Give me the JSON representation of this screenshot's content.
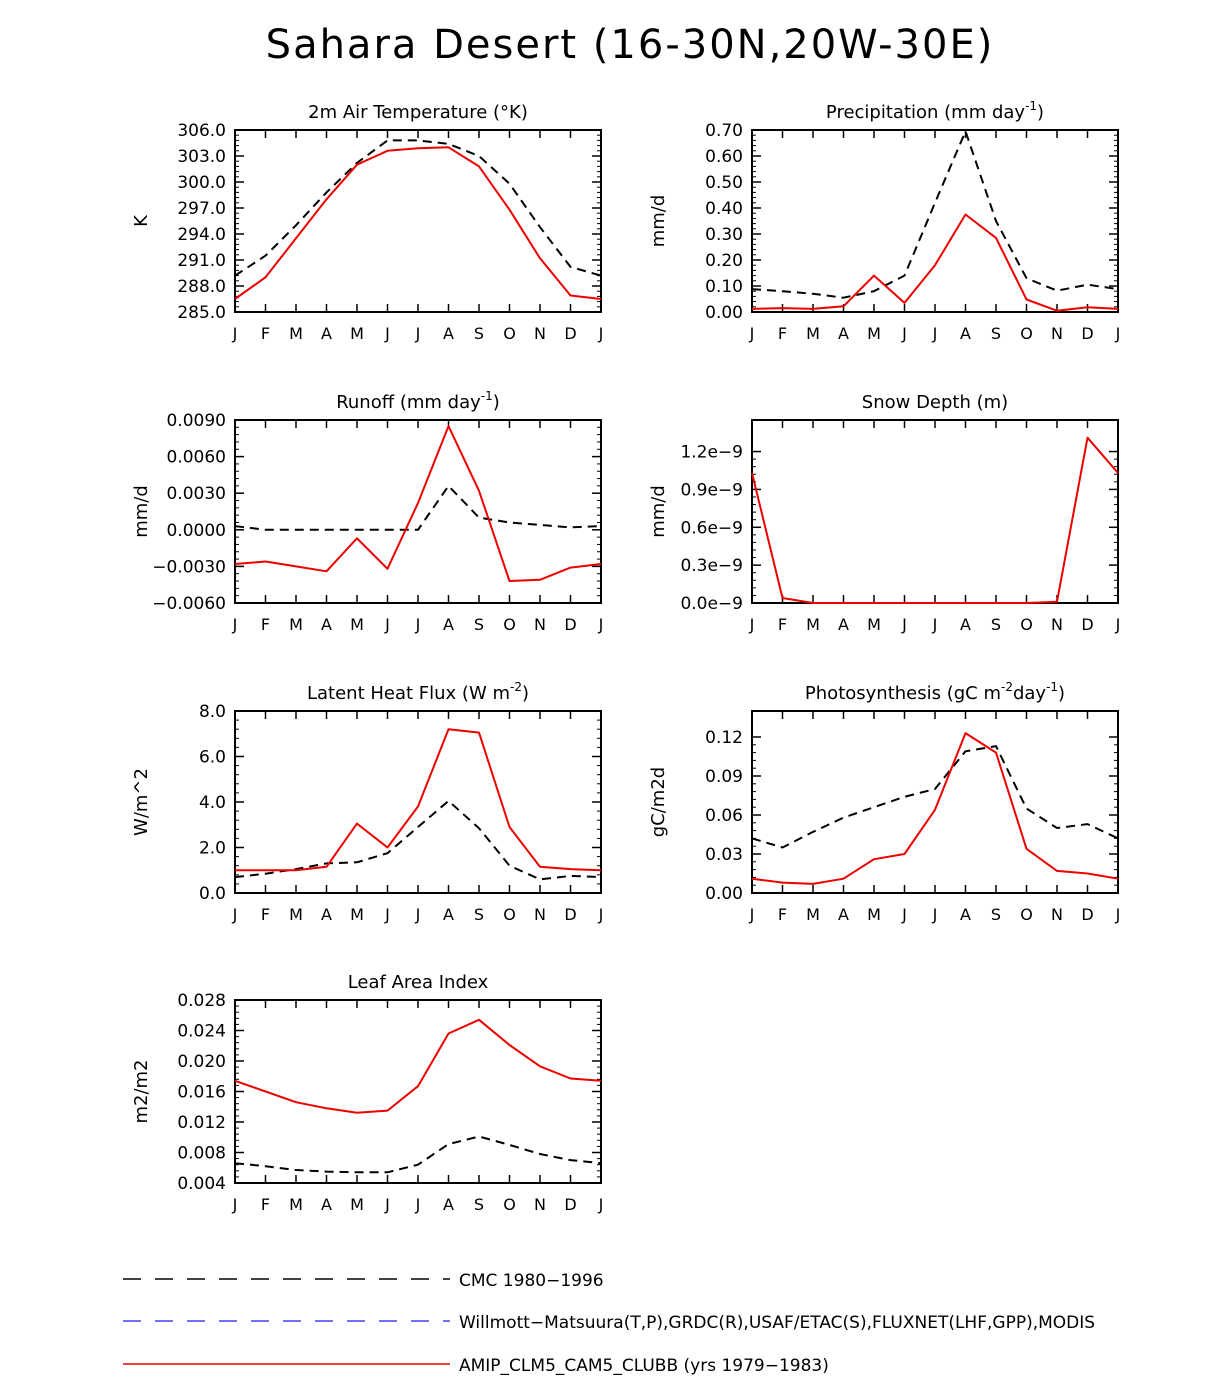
{
  "title": "Sahara Desert (16-30N,20W-30E)",
  "colors": {
    "obs": "#000000",
    "obs2": "#4040ff",
    "model": "#ee0000"
  },
  "months": [
    "J",
    "F",
    "M",
    "A",
    "M",
    "J",
    "J",
    "A",
    "S",
    "O",
    "N",
    "D",
    "J"
  ],
  "chart_data": [
    {
      "type": "line",
      "title": "2m Air Temperature (°K)",
      "ylabel": "K",
      "ylim": [
        285.0,
        306.0
      ],
      "yticks": [
        "285.0",
        "288.0",
        "291.0",
        "294.0",
        "297.0",
        "300.0",
        "303.0",
        "306.0"
      ],
      "ytick_values": [
        285,
        288,
        291,
        294,
        297,
        300,
        303,
        306
      ],
      "series": [
        {
          "name": "CMC 1980-1996",
          "style": "obs",
          "values": [
            289.2,
            291.5,
            295.0,
            298.8,
            302.2,
            304.8,
            304.8,
            304.4,
            303.0,
            299.8,
            294.8,
            290.2,
            289.2
          ]
        },
        {
          "name": "AMIP_CLM5_CAM5_CLUBB (yrs 1979-1983)",
          "style": "model",
          "values": [
            286.5,
            289.0,
            293.5,
            298.0,
            302.0,
            303.6,
            303.9,
            304.0,
            301.8,
            296.8,
            291.2,
            286.9,
            286.5
          ]
        }
      ]
    },
    {
      "type": "line",
      "title": "Precipitation (mm day",
      "title_sup": "-1",
      "title_end": ")",
      "ylabel": "mm/d",
      "ylim": [
        0.0,
        0.7
      ],
      "yticks": [
        "0.00",
        "0.10",
        "0.20",
        "0.30",
        "0.40",
        "0.50",
        "0.60",
        "0.70"
      ],
      "ytick_values": [
        0,
        0.1,
        0.2,
        0.3,
        0.4,
        0.5,
        0.6,
        0.7
      ],
      "series": [
        {
          "name": "CMC 1980-1996",
          "style": "obs",
          "values": [
            0.088,
            0.08,
            0.07,
            0.055,
            0.08,
            0.14,
            0.42,
            0.695,
            0.35,
            0.13,
            0.082,
            0.105,
            0.088
          ]
        },
        {
          "name": "AMIP_CLM5_CAM5_CLUBB (yrs 1979-1983)",
          "style": "model",
          "values": [
            0.012,
            0.015,
            0.012,
            0.022,
            0.14,
            0.035,
            0.18,
            0.375,
            0.285,
            0.048,
            0.005,
            0.018,
            0.012
          ]
        }
      ]
    },
    {
      "type": "line",
      "title": "Runoff (mm day",
      "title_sup": "-1",
      "title_end": ")",
      "ylabel": "mm/d",
      "ylim": [
        -0.006,
        0.009
      ],
      "yticks": [
        "−0.0060",
        "−0.0030",
        "0.0000",
        "0.0030",
        "0.0060",
        "0.0090"
      ],
      "ytick_values": [
        -0.006,
        -0.003,
        0,
        0.003,
        0.006,
        0.009
      ],
      "series": [
        {
          "name": "CMC 1980-1996",
          "style": "obs",
          "values": [
            0.0003,
            0.0,
            0.0,
            0.0,
            0.0,
            0.0,
            0.0,
            0.0036,
            0.001,
            0.0006,
            0.0004,
            0.0002,
            0.0003
          ]
        },
        {
          "name": "AMIP_CLM5_CAM5_CLUBB (yrs 1979-1983)",
          "style": "model",
          "values": [
            -0.0028,
            -0.0026,
            -0.003,
            -0.0034,
            -0.0007,
            -0.0032,
            0.0022,
            0.0085,
            0.0032,
            -0.0042,
            -0.0041,
            -0.0031,
            -0.0028
          ]
        }
      ]
    },
    {
      "type": "line",
      "title": "Snow Depth (m)",
      "ylabel": "mm/d",
      "ylim": [
        0.0,
        1.45
      ],
      "yticks": [
        "0.0e−9",
        "0.3e−9",
        "0.6e−9",
        "0.9e−9",
        "1.2e−9"
      ],
      "ytick_values": [
        0,
        0.3,
        0.6,
        0.9,
        1.2
      ],
      "series": [
        {
          "name": "CMC 1980-1996",
          "style": "obs",
          "values": [
            0.0,
            0.0,
            0.0,
            0.0,
            0.0,
            0.0,
            0.0,
            0.0,
            0.0,
            0.0,
            0.0,
            0.0,
            0.0
          ]
        },
        {
          "name": "AMIP_CLM5_CAM5_CLUBB (yrs 1979-1983)",
          "style": "model",
          "values": [
            1.03,
            0.04,
            0.0,
            0.0,
            0.0,
            0.0,
            0.0,
            0.0,
            0.0,
            0.0,
            0.01,
            1.31,
            1.03
          ]
        }
      ]
    },
    {
      "type": "line",
      "title": "Latent Heat Flux (W m",
      "title_sup": "-2",
      "title_end": ")",
      "ylabel": "W/m^2",
      "ylim": [
        0.0,
        8.0
      ],
      "yticks": [
        "0.0",
        "2.0",
        "4.0",
        "6.0",
        "8.0"
      ],
      "ytick_values": [
        0,
        2,
        4,
        6,
        8
      ],
      "series": [
        {
          "name": "CMC 1980-1996",
          "style": "obs",
          "values": [
            0.7,
            0.85,
            1.05,
            1.3,
            1.35,
            1.75,
            2.9,
            4.05,
            2.85,
            1.2,
            0.6,
            0.75,
            0.7
          ]
        },
        {
          "name": "AMIP_CLM5_CAM5_CLUBB (yrs 1979-1983)",
          "style": "model",
          "values": [
            1.0,
            1.0,
            1.0,
            1.15,
            3.05,
            2.0,
            3.8,
            7.2,
            7.05,
            2.9,
            1.15,
            1.05,
            1.0
          ]
        }
      ]
    },
    {
      "type": "line",
      "title": "Photosynthesis (gC m",
      "title_sup": "-2",
      "title_mid": "day",
      "title_sup2": "-1",
      "title_end": ")",
      "ylabel": "gC/m2d",
      "ylim": [
        0.0,
        0.14
      ],
      "yticks": [
        "0.00",
        "0.03",
        "0.06",
        "0.09",
        "0.12"
      ],
      "ytick_values": [
        0,
        0.03,
        0.06,
        0.09,
        0.12
      ],
      "series": [
        {
          "name": "CMC 1980-1996",
          "style": "obs",
          "values": [
            0.042,
            0.035,
            0.047,
            0.058,
            0.066,
            0.074,
            0.08,
            0.109,
            0.113,
            0.065,
            0.05,
            0.053,
            0.042
          ]
        },
        {
          "name": "AMIP_CLM5_CAM5_CLUBB (yrs 1979-1983)",
          "style": "model",
          "values": [
            0.011,
            0.008,
            0.007,
            0.011,
            0.026,
            0.03,
            0.064,
            0.123,
            0.108,
            0.034,
            0.017,
            0.015,
            0.011
          ]
        }
      ]
    },
    {
      "type": "line",
      "title": "Leaf Area Index",
      "ylabel": "m2/m2",
      "ylim": [
        0.004,
        0.028
      ],
      "yticks": [
        "0.004",
        "0.008",
        "0.012",
        "0.016",
        "0.020",
        "0.024",
        "0.028"
      ],
      "ytick_values": [
        0.004,
        0.008,
        0.012,
        0.016,
        0.02,
        0.024,
        0.028
      ],
      "series": [
        {
          "name": "CMC 1980-1996",
          "style": "obs",
          "values": [
            0.0066,
            0.0062,
            0.0057,
            0.0055,
            0.0054,
            0.0054,
            0.0064,
            0.0091,
            0.0101,
            0.009,
            0.0078,
            0.007,
            0.0066
          ]
        },
        {
          "name": "AMIP_CLM5_CAM5_CLUBB (yrs 1979-1983)",
          "style": "model",
          "values": [
            0.0174,
            0.016,
            0.0146,
            0.0138,
            0.0132,
            0.0135,
            0.0167,
            0.0236,
            0.0254,
            0.0221,
            0.0193,
            0.0177,
            0.0174
          ]
        }
      ]
    }
  ],
  "legend": [
    {
      "label": "CMC 1980−1996",
      "style": "obs"
    },
    {
      "label": "Willmott−Matsuura(T,P),GRDC(R),USAF/ETAC(S),FLUXNET(LHF,GPP),MODIS",
      "style": "obs2"
    },
    {
      "label": "AMIP_CLM5_CAM5_CLUBB (yrs 1979−1983)",
      "style": "model"
    }
  ]
}
